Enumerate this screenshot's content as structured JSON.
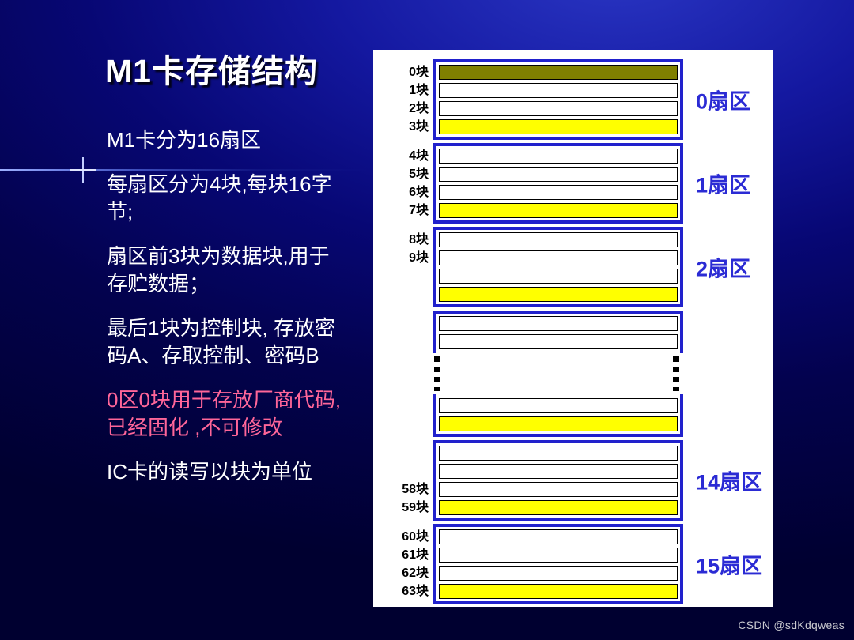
{
  "colors": {
    "vendor": "#808000",
    "data": "#ffffff",
    "trailer": "#ffff00",
    "sector_border": "#2121cc",
    "sector_label": "#2b2bd4",
    "highlight_text": "#ff6699"
  },
  "title": "M1卡存储结构",
  "paragraphs": [
    {
      "text": "M1卡分为16扇区",
      "style": "normal"
    },
    {
      "text": "每扇区分为4块,每块16字节;",
      "style": "normal"
    },
    {
      "text": "扇区前3块为数据块,用于存贮数据；",
      "style": "normal"
    },
    {
      "text": "最后1块为控制块, 存放密码A、存取控制、密码B",
      "style": "normal"
    },
    {
      "text": "0区0块用于存放厂商代码,已经固化 ,不可修改",
      "style": "highlight"
    },
    {
      "text": "IC卡的读写以块为单位",
      "style": "normal"
    }
  ],
  "diagram": {
    "segments": [
      {
        "type": "sector",
        "sector_label": "0扇区",
        "rows": [
          {
            "label": "0块",
            "fill": "vendor"
          },
          {
            "label": "1块",
            "fill": "data"
          },
          {
            "label": "2块",
            "fill": "data"
          },
          {
            "label": "3块",
            "fill": "trailer"
          }
        ]
      },
      {
        "type": "sector",
        "sector_label": "1扇区",
        "rows": [
          {
            "label": "4块",
            "fill": "data"
          },
          {
            "label": "5块",
            "fill": "data"
          },
          {
            "label": "6块",
            "fill": "data"
          },
          {
            "label": "7块",
            "fill": "trailer"
          }
        ]
      },
      {
        "type": "sector",
        "sector_label": "2扇区",
        "rows": [
          {
            "label": "8块",
            "fill": "data"
          },
          {
            "label": "9块",
            "fill": "data"
          },
          {
            "label": "",
            "fill": "data"
          },
          {
            "label": "",
            "fill": "trailer"
          }
        ]
      },
      {
        "type": "sector",
        "variant": "partial-top",
        "sector_label": "",
        "rows": [
          {
            "label": "",
            "fill": "data"
          },
          {
            "label": "",
            "fill": "data"
          }
        ]
      },
      {
        "type": "ellipsis"
      },
      {
        "type": "sector",
        "variant": "partial-bottom",
        "sector_label": "",
        "rows": [
          {
            "label": "",
            "fill": "data"
          },
          {
            "label": "",
            "fill": "trailer"
          }
        ]
      },
      {
        "type": "sector",
        "sector_label": "14扇区",
        "rows": [
          {
            "label": "",
            "fill": "data"
          },
          {
            "label": "",
            "fill": "data"
          },
          {
            "label": "58块",
            "fill": "data"
          },
          {
            "label": "59块",
            "fill": "trailer"
          }
        ]
      },
      {
        "type": "sector",
        "sector_label": "15扇区",
        "rows": [
          {
            "label": "60块",
            "fill": "data"
          },
          {
            "label": "61块",
            "fill": "data"
          },
          {
            "label": "62块",
            "fill": "data"
          },
          {
            "label": "63块",
            "fill": "trailer"
          }
        ]
      }
    ]
  },
  "watermark": "CSDN @sdKdqweas"
}
